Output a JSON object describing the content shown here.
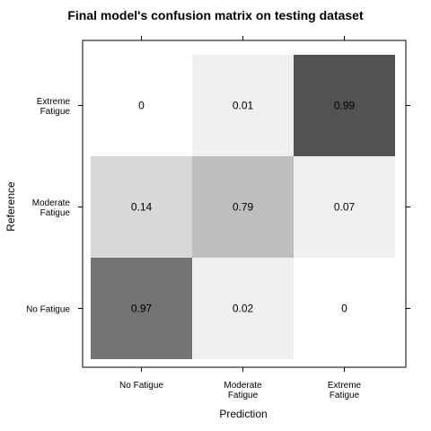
{
  "chart_data": {
    "type": "heatmap",
    "title": "Final model's confusion matrix on testing dataset",
    "xlabel": "Prediction",
    "ylabel": "Reference",
    "x_categories": [
      [
        "No Fatigue"
      ],
      [
        "Moderate",
        "Fatigue"
      ],
      [
        "Extreme",
        "Fatigue"
      ]
    ],
    "y_categories": [
      [
        "No Fatigue"
      ],
      [
        "Moderate",
        "Fatigue"
      ],
      [
        "Extreme",
        "Fatigue"
      ]
    ],
    "cells": [
      {
        "x": 0,
        "y": 0,
        "value": 0.97,
        "label": "0.97",
        "color": "#747474"
      },
      {
        "x": 1,
        "y": 0,
        "value": 0.02,
        "label": "0.02",
        "color": "#f0f0f0"
      },
      {
        "x": 2,
        "y": 0,
        "value": 0.0,
        "label": "0",
        "color": "#ffffff"
      },
      {
        "x": 0,
        "y": 1,
        "value": 0.14,
        "label": "0.14",
        "color": "#d8d8d8"
      },
      {
        "x": 1,
        "y": 1,
        "value": 0.79,
        "label": "0.79",
        "color": "#bebebe"
      },
      {
        "x": 2,
        "y": 1,
        "value": 0.07,
        "label": "0.07",
        "color": "#f0f0f0"
      },
      {
        "x": 0,
        "y": 2,
        "value": 0.0,
        "label": "0",
        "color": "#ffffff"
      },
      {
        "x": 1,
        "y": 2,
        "value": 0.01,
        "label": "0.01",
        "color": "#f0f0f0"
      },
      {
        "x": 2,
        "y": 2,
        "value": 0.99,
        "label": "0.99",
        "color": "#525252"
      }
    ],
    "grid": false
  }
}
